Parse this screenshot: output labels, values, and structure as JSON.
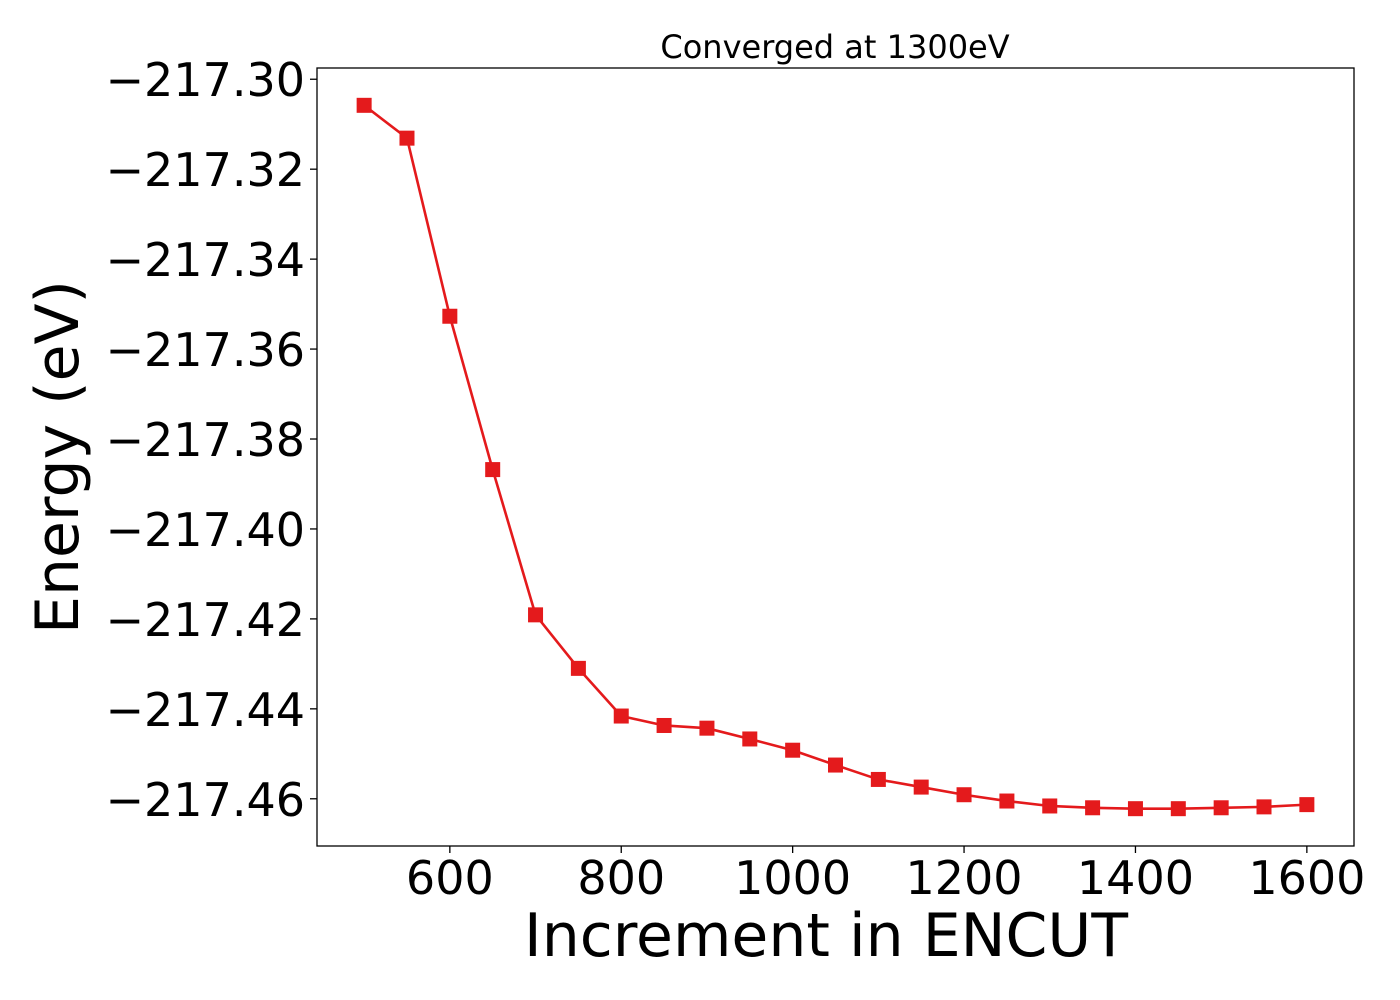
{
  "chart_data": {
    "type": "line",
    "title": "Converged at 1300eV",
    "xlabel": "Increment in ENCUT",
    "ylabel": "Energy (eV)",
    "xlim": [
      445,
      1655
    ],
    "ylim": [
      -217.4705,
      -217.2975
    ],
    "x_ticks": [
      600,
      800,
      1000,
      1200,
      1400,
      1600
    ],
    "x_tick_labels": [
      "600",
      "800",
      "1000",
      "1200",
      "1400",
      "1600"
    ],
    "y_ticks": [
      -217.3,
      -217.32,
      -217.34,
      -217.36,
      -217.38,
      -217.4,
      -217.42,
      -217.44,
      -217.46
    ],
    "y_tick_labels": [
      "−217.30",
      "−217.32",
      "−217.34",
      "−217.36",
      "−217.38",
      "−217.40",
      "−217.42",
      "−217.44",
      "−217.46"
    ],
    "grid": false,
    "series": [
      {
        "color": "#e41a1c",
        "marker": "square",
        "x": [
          500,
          550,
          600,
          650,
          700,
          750,
          800,
          850,
          900,
          950,
          1000,
          1050,
          1100,
          1150,
          1200,
          1250,
          1300,
          1350,
          1400,
          1450,
          1500,
          1550,
          1600
        ],
        "y": [
          -217.3058,
          -217.3131,
          -217.3527,
          -217.3868,
          -217.4191,
          -217.431,
          -217.4416,
          -217.4437,
          -217.4443,
          -217.4467,
          -217.4492,
          -217.4525,
          -217.4557,
          -217.4574,
          -217.4591,
          -217.4605,
          -217.4616,
          -217.462,
          -217.4622,
          -217.4622,
          -217.462,
          -217.4618,
          -217.4613
        ]
      }
    ]
  }
}
